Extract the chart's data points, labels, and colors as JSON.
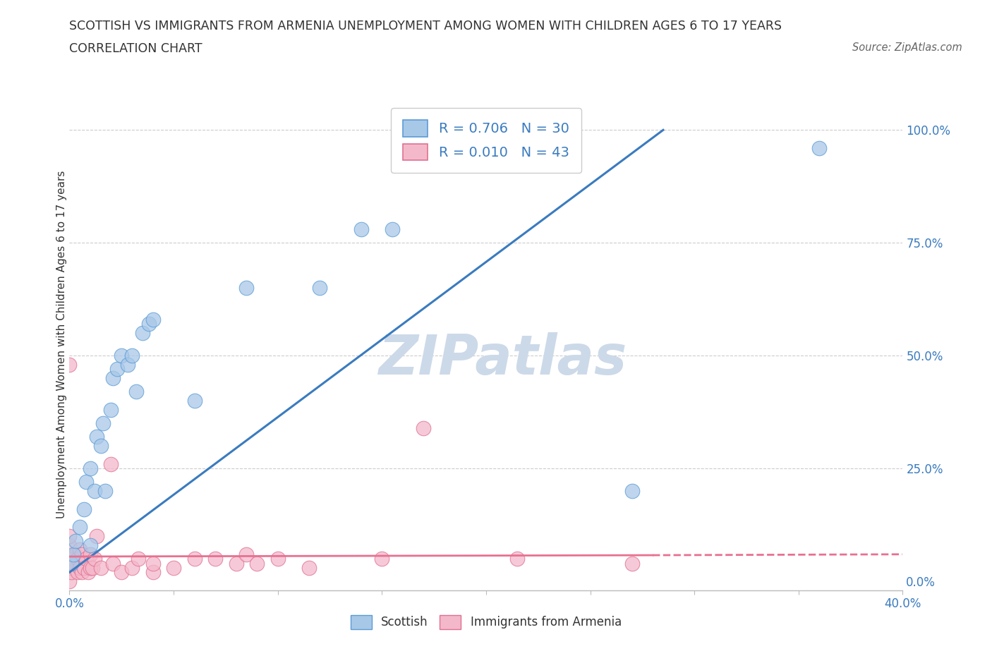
{
  "title_line1": "SCOTTISH VS IMMIGRANTS FROM ARMENIA UNEMPLOYMENT AMONG WOMEN WITH CHILDREN AGES 6 TO 17 YEARS",
  "title_line2": "CORRELATION CHART",
  "source_text": "Source: ZipAtlas.com",
  "ylabel": "Unemployment Among Women with Children Ages 6 to 17 years",
  "xlim": [
    0.0,
    0.4
  ],
  "ylim": [
    -0.02,
    1.07
  ],
  "x_ticks": [
    0.0,
    0.05,
    0.1,
    0.15,
    0.2,
    0.25,
    0.3,
    0.35,
    0.4
  ],
  "y_ticks": [
    0.0,
    0.25,
    0.5,
    0.75,
    1.0
  ],
  "y_tick_labels": [
    "0.0%",
    "25.0%",
    "50.0%",
    "75.0%",
    "100.0%"
  ],
  "scottish_color": "#a8c8e8",
  "armenia_color": "#f4b8cb",
  "scottish_edge_color": "#5b9bd5",
  "armenia_edge_color": "#e07090",
  "scottish_line_color": "#3a7bbf",
  "armenia_line_color": "#e87090",
  "watermark_color": "#ccd9e8",
  "R_scottish": 0.706,
  "N_scottish": 30,
  "R_armenia": 0.01,
  "N_armenia": 43,
  "scottish_x": [
    0.001,
    0.002,
    0.003,
    0.005,
    0.007,
    0.008,
    0.01,
    0.01,
    0.012,
    0.013,
    0.015,
    0.016,
    0.017,
    0.02,
    0.021,
    0.023,
    0.025,
    0.028,
    0.03,
    0.032,
    0.035,
    0.038,
    0.04,
    0.06,
    0.085,
    0.12,
    0.14,
    0.155,
    0.27,
    0.36
  ],
  "scottish_y": [
    0.04,
    0.06,
    0.09,
    0.12,
    0.16,
    0.22,
    0.08,
    0.25,
    0.2,
    0.32,
    0.3,
    0.35,
    0.2,
    0.38,
    0.45,
    0.47,
    0.5,
    0.48,
    0.5,
    0.42,
    0.55,
    0.57,
    0.58,
    0.4,
    0.65,
    0.65,
    0.78,
    0.78,
    0.2,
    0.96
  ],
  "armenia_x": [
    0.0,
    0.0,
    0.0,
    0.0,
    0.0,
    0.0,
    0.001,
    0.002,
    0.003,
    0.004,
    0.004,
    0.005,
    0.005,
    0.006,
    0.006,
    0.007,
    0.008,
    0.009,
    0.01,
    0.01,
    0.011,
    0.012,
    0.013,
    0.015,
    0.02,
    0.021,
    0.025,
    0.03,
    0.033,
    0.04,
    0.04,
    0.05,
    0.06,
    0.07,
    0.08,
    0.085,
    0.09,
    0.1,
    0.115,
    0.15,
    0.17,
    0.215,
    0.27
  ],
  "armenia_y": [
    0.0,
    0.03,
    0.05,
    0.08,
    0.1,
    0.48,
    0.02,
    0.04,
    0.06,
    0.02,
    0.05,
    0.03,
    0.07,
    0.02,
    0.06,
    0.03,
    0.05,
    0.02,
    0.03,
    0.06,
    0.03,
    0.05,
    0.1,
    0.03,
    0.26,
    0.04,
    0.02,
    0.03,
    0.05,
    0.02,
    0.04,
    0.03,
    0.05,
    0.05,
    0.04,
    0.06,
    0.04,
    0.05,
    0.03,
    0.05,
    0.34,
    0.05,
    0.04
  ],
  "scot_line_x0": 0.0,
  "scot_line_y0": 0.02,
  "scot_line_x1": 0.285,
  "scot_line_y1": 1.0,
  "arm_line_x0": 0.0,
  "arm_line_y0": 0.055,
  "arm_line_x1": 0.28,
  "arm_line_y1": 0.058,
  "arm_line_dash_x0": 0.28,
  "arm_line_dash_y0": 0.058,
  "arm_line_dash_x1": 0.4,
  "arm_line_dash_y1": 0.06
}
